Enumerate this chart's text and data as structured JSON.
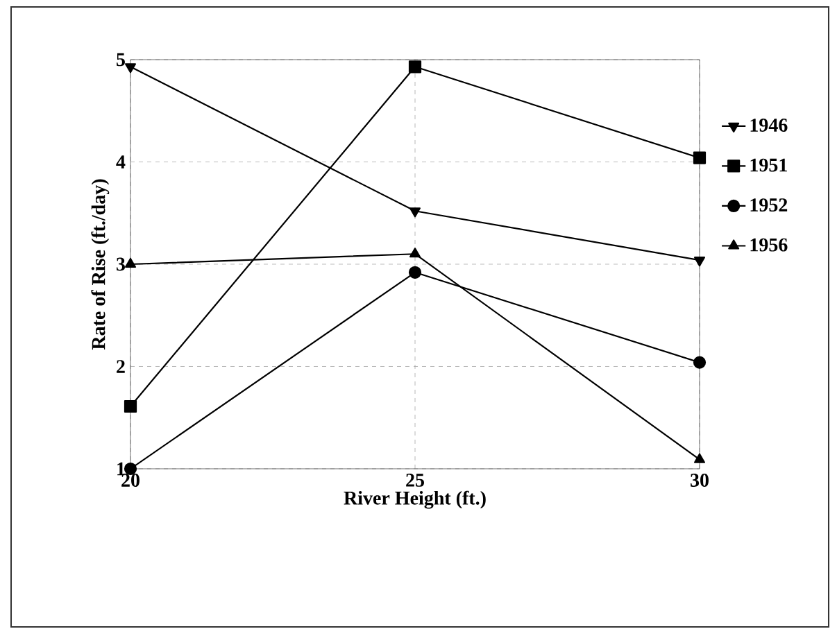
{
  "chart_data": {
    "type": "line",
    "xlabel": "River Height (ft.)",
    "ylabel": "Rate of Rise (ft./day)",
    "x": [
      20,
      25,
      30
    ],
    "xlim": [
      20,
      30
    ],
    "xticks": [
      20,
      25,
      30
    ],
    "ylim": [
      1,
      5
    ],
    "yticks": [
      1,
      2,
      3,
      4,
      5
    ],
    "grid": true,
    "legend": "right",
    "line_style": "solid",
    "series": [
      {
        "name": "1946",
        "color": "#000000",
        "marker": "triangle-down",
        "values": [
          4.93,
          3.52,
          3.04
        ]
      },
      {
        "name": "1951",
        "color": "#000000",
        "marker": "square",
        "values": [
          1.61,
          4.93,
          4.04
        ]
      },
      {
        "name": "1952",
        "color": "#000000",
        "marker": "circle",
        "values": [
          1.0,
          2.92,
          2.04
        ]
      },
      {
        "name": "1956",
        "color": "#000000",
        "marker": "triangle",
        "values": [
          3.0,
          3.1,
          1.09
        ]
      }
    ]
  }
}
